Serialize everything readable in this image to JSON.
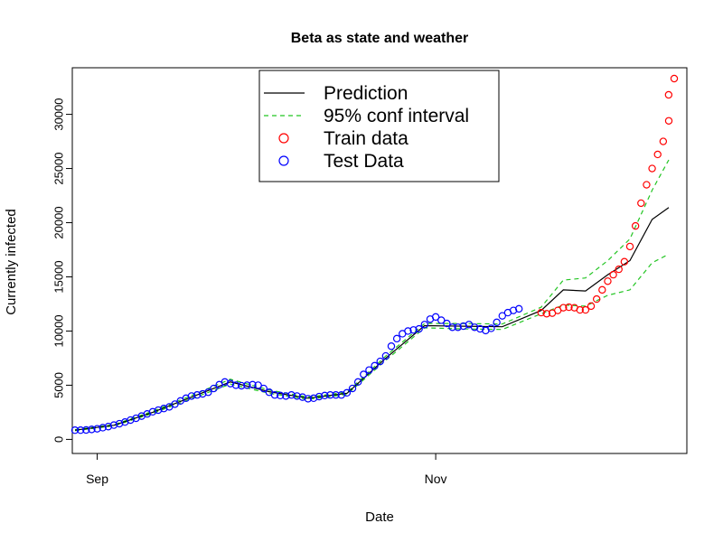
{
  "chart_data": {
    "type": "line",
    "title": "Beta as state and weather",
    "xlabel": "Date",
    "ylabel": "Currently infected",
    "x_start_date": "2020-08-28",
    "x_end_date": "2020-12-13",
    "x_ticks": [
      {
        "date": "2020-09-01",
        "label": "Sep"
      },
      {
        "date": "2020-11-01",
        "label": "Nov"
      }
    ],
    "y_ticks": [
      0,
      5000,
      10000,
      15000,
      20000,
      25000,
      30000
    ],
    "ylim": [
      -1300,
      34300
    ],
    "legend": {
      "placement": "top-center",
      "entries": [
        {
          "label": "Prediction",
          "style": "line",
          "color": "#000000"
        },
        {
          "label": "95% conf interval",
          "style": "dashed",
          "color": "#22c522"
        },
        {
          "label": "Train data",
          "style": "circle",
          "color": "#ff0000"
        },
        {
          "label": "Test Data",
          "style": "circle",
          "color": "#0000ff"
        }
      ]
    },
    "series": [
      {
        "name": "Test Data",
        "color": "#0000ff",
        "x": [
          "2020-08-28",
          "2020-08-29",
          "2020-08-30",
          "2020-08-31",
          "2020-09-01",
          "2020-09-02",
          "2020-09-03",
          "2020-09-04",
          "2020-09-05",
          "2020-09-06",
          "2020-09-07",
          "2020-09-08",
          "2020-09-09",
          "2020-09-10",
          "2020-09-11",
          "2020-09-12",
          "2020-09-13",
          "2020-09-14",
          "2020-09-15",
          "2020-09-16",
          "2020-09-17",
          "2020-09-18",
          "2020-09-19",
          "2020-09-20",
          "2020-09-21",
          "2020-09-22",
          "2020-09-23",
          "2020-09-24",
          "2020-09-25",
          "2020-09-26",
          "2020-09-27",
          "2020-09-28",
          "2020-09-29",
          "2020-09-30",
          "2020-10-01",
          "2020-10-02",
          "2020-10-03",
          "2020-10-04",
          "2020-10-05",
          "2020-10-06",
          "2020-10-07",
          "2020-10-08",
          "2020-10-09",
          "2020-10-10",
          "2020-10-11",
          "2020-10-12",
          "2020-10-13",
          "2020-10-14",
          "2020-10-15",
          "2020-10-16",
          "2020-10-17",
          "2020-10-18",
          "2020-10-19",
          "2020-10-20",
          "2020-10-21",
          "2020-10-22",
          "2020-10-23",
          "2020-10-24",
          "2020-10-25",
          "2020-10-26",
          "2020-10-27",
          "2020-10-28",
          "2020-10-29",
          "2020-10-30",
          "2020-10-31",
          "2020-11-01",
          "2020-11-02",
          "2020-11-03",
          "2020-11-04",
          "2020-11-05",
          "2020-11-06",
          "2020-11-07",
          "2020-11-08",
          "2020-11-09",
          "2020-11-10",
          "2020-11-11",
          "2020-11-12",
          "2020-11-13",
          "2020-11-14",
          "2020-11-15",
          "2020-11-16",
          "2020-11-17",
          "2020-11-18",
          "2020-11-19",
          "2020-11-20"
        ],
        "values": [
          850,
          850,
          870,
          920,
          980,
          1080,
          1180,
          1320,
          1450,
          1600,
          1780,
          1950,
          2150,
          2350,
          2550,
          2700,
          2850,
          3000,
          3250,
          3550,
          3800,
          4000,
          4100,
          4200,
          4350,
          4700,
          5050,
          5300,
          5150,
          5000,
          4950,
          5000,
          5050,
          5000,
          4700,
          4350,
          4100,
          4050,
          4000,
          4100,
          4000,
          3900,
          3750,
          3800,
          3950,
          4050,
          4100,
          4100,
          4100,
          4300,
          4700,
          5300,
          6000,
          6400,
          6800,
          7200,
          7700,
          8600,
          9300,
          9750,
          10000,
          10100,
          10200,
          10600,
          11100,
          11300,
          11000,
          10700,
          10350,
          10350,
          10450,
          10600,
          10350,
          10200,
          10050,
          10250,
          10800,
          11400,
          11700,
          11900,
          12050,
          null,
          null,
          null,
          null
        ]
      },
      {
        "name": "Train data",
        "color": "#ff0000",
        "x": [
          "2020-11-20",
          "2020-11-21",
          "2020-11-22",
          "2020-11-23",
          "2020-11-24",
          "2020-11-25",
          "2020-11-26",
          "2020-11-27",
          "2020-11-28",
          "2020-11-29",
          "2020-11-30",
          "2020-12-01",
          "2020-12-02",
          "2020-12-03",
          "2020-12-04",
          "2020-12-05",
          "2020-12-06",
          "2020-12-07",
          "2020-12-08",
          "2020-12-09",
          "2020-12-10",
          "2020-12-11",
          "2020-12-12",
          "2020-12-13"
        ],
        "values": [
          11700,
          11600,
          11650,
          11900,
          12150,
          12200,
          12150,
          11950,
          11950,
          12300,
          12950,
          13800,
          14600,
          15200,
          15700,
          16400,
          17800,
          19700,
          21800,
          23500,
          25000,
          26300,
          27500,
          29400
        ]
      },
      {
        "name": "Prediction",
        "color": "#000000",
        "x": [
          "2020-08-28",
          "2020-09-04",
          "2020-09-11",
          "2020-09-18",
          "2020-09-25",
          "2020-10-02",
          "2020-10-09",
          "2020-10-16",
          "2020-10-23",
          "2020-10-30",
          "2020-11-06",
          "2020-11-13",
          "2020-11-20",
          "2020-11-24",
          "2020-11-28",
          "2020-12-02",
          "2020-12-06",
          "2020-12-10",
          "2020-12-13"
        ],
        "values": [
          850,
          1300,
          2500,
          3900,
          5300,
          4400,
          3800,
          4250,
          7500,
          10500,
          10450,
          10400,
          11900,
          13800,
          13700,
          15200,
          16500,
          20300,
          21400
        ]
      },
      {
        "name": "95% conf interval",
        "color": "#22c522",
        "x": [
          "2020-08-28",
          "2020-09-04",
          "2020-09-11",
          "2020-09-18",
          "2020-09-25",
          "2020-10-02",
          "2020-10-09",
          "2020-10-16",
          "2020-10-23",
          "2020-10-30",
          "2020-11-06",
          "2020-11-13",
          "2020-11-20",
          "2020-11-24",
          "2020-11-28",
          "2020-12-02",
          "2020-12-06",
          "2020-12-10",
          "2020-12-13"
        ],
        "upper": [
          900,
          1350,
          2600,
          4050,
          5550,
          4550,
          3900,
          4350,
          7700,
          10700,
          10700,
          10650,
          12200,
          14700,
          14900,
          16500,
          18500,
          23000,
          25800
        ],
        "lower": [
          800,
          1250,
          2400,
          3750,
          5100,
          4250,
          3700,
          4150,
          7300,
          10300,
          10200,
          10150,
          11600,
          12400,
          12300,
          13300,
          13800,
          16300,
          17100
        ]
      }
    ],
    "extra_red_points": [
      {
        "x": "2020-12-12",
        "y": 31800
      },
      {
        "x": "2020-12-13",
        "y": 33300
      }
    ]
  }
}
